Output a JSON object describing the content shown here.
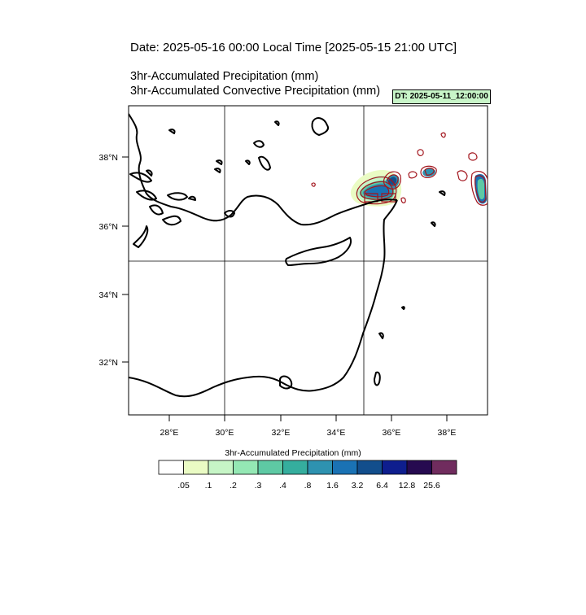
{
  "header": {
    "title": "Date: 2025-05-16  00:00 Local Time [2025-05-15  21:00 UTC]",
    "line1": "3hr-Accumulated Precipitation   (mm)",
    "line2": "3hr-Accumulated Convective Precipitation   (mm)",
    "dt_badge": "DT: 2025-05-11_12:00:00"
  },
  "map": {
    "region": "Eastern Mediterranean",
    "lat_ticks": [
      "38°N",
      "36°N",
      "34°N",
      "32°N"
    ],
    "lon_ticks": [
      "28°E",
      "30°E",
      "32°E",
      "34°E",
      "36°E",
      "38°E"
    ],
    "grid_lines": {
      "lon": [
        "30°E",
        "35°E"
      ],
      "lat": [
        "35°N"
      ]
    }
  },
  "colorbar": {
    "title": "3hr-Accumulated Precipitation   (mm)",
    "labels": [
      ".05",
      ".1",
      ".2",
      ".3",
      ".4",
      ".8",
      "1.6",
      "3.2",
      "6.4",
      "12.8",
      "25.6"
    ],
    "colors": [
      "#ffffff",
      "#eafbc4",
      "#c6f5c6",
      "#94e8b4",
      "#5ec9a4",
      "#35ae9e",
      "#2e92b0",
      "#1a72b4",
      "#124e8c",
      "#0e1e8e",
      "#260a50",
      "#702c5e"
    ]
  },
  "chart_data": {
    "type": "heatmap",
    "x_range": [
      "26.5°E",
      "39.4°E"
    ],
    "y_range": [
      "30.4°N",
      "39.4°N"
    ],
    "features": [
      {
        "name": "heavy precipitation",
        "lat": 36.9,
        "lon": 35.7,
        "max_class": "12.8"
      },
      {
        "name": "precipitation cell",
        "lat": 36.9,
        "lon": 39.3,
        "max_class": "12.8"
      },
      {
        "name": "precipitation cell",
        "lat": 37.3,
        "lon": 37.0,
        "max_class": "6.4"
      }
    ]
  }
}
